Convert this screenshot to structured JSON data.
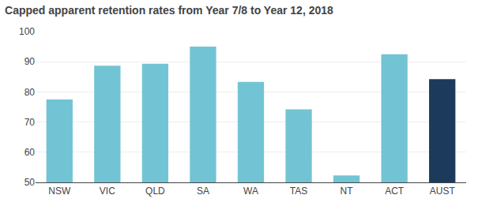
{
  "chart_data": {
    "type": "bar",
    "title": "Capped apparent retention rates from Year 7/8 to Year 12, 2018",
    "categories": [
      "NSW",
      "VIC",
      "QLD",
      "SA",
      "WA",
      "TAS",
      "NT",
      "ACT",
      "AUST"
    ],
    "values": [
      77.5,
      88.7,
      89.3,
      95.0,
      83.3,
      74.2,
      52.3,
      92.5,
      84.2
    ],
    "colors": [
      "#72c4d4",
      "#72c4d4",
      "#72c4d4",
      "#72c4d4",
      "#72c4d4",
      "#72c4d4",
      "#72c4d4",
      "#72c4d4",
      "#1b3a5c"
    ],
    "ylim": [
      50,
      100
    ],
    "yticks": [
      50,
      60,
      70,
      80,
      90,
      100
    ],
    "grid": true
  }
}
